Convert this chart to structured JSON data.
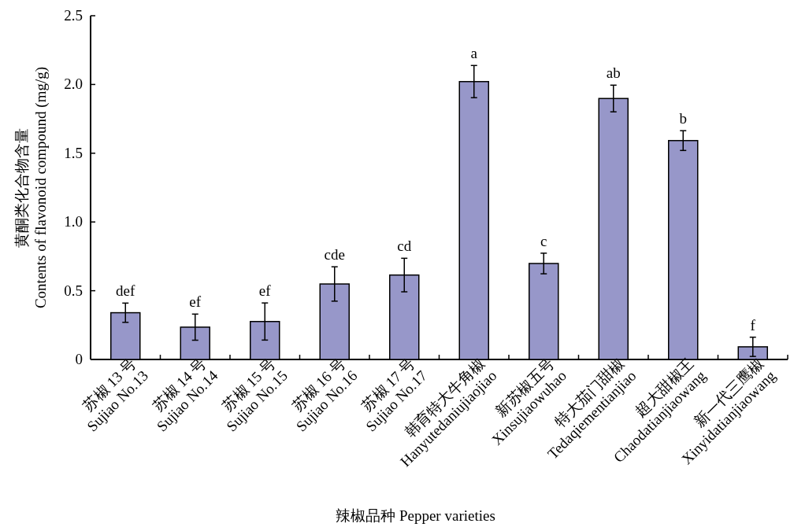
{
  "chart_data": {
    "type": "bar",
    "xlabel": "辣椒品种 Pepper varieties",
    "ylabel": "黄酮类化合物含量\nContents of flavonoid compound (mg/g)",
    "categories": [
      "苏椒 13 号\nSujiao No.13",
      "苏椒 14 号\nSujiao No.14",
      "苏椒 15 号\nSujiao No.15",
      "苏椒 16 号\nSujiao No.16",
      "苏椒 17 号\nSujiao No.17",
      "韩育特大牛角椒\nHanyutedaniujiaojiao",
      "新苏椒五号\nXinsujiaowuhao",
      "特大茄门甜椒\nTedaqiementianjiao",
      "超大甜椒王\nChaodatianjiaowang",
      "新一代三鹰椒\nXinyidatianjiaowang"
    ],
    "values": [
      0.34,
      0.235,
      0.276,
      0.549,
      0.614,
      2.021,
      0.698,
      1.898,
      1.592,
      0.092
    ],
    "errors": [
      0.07,
      0.095,
      0.135,
      0.125,
      0.122,
      0.117,
      0.075,
      0.097,
      0.072,
      0.07
    ],
    "value_labels": [
      "def",
      "ef",
      "ef",
      "cde",
      "cd",
      "a",
      "c",
      "ab",
      "b",
      "f"
    ],
    "color": "#9797c9",
    "ylim": [
      0,
      2.5
    ],
    "yticks": [
      0,
      0.5,
      {
        "value": 1,
        "label": "1.0"
      },
      1.5,
      {
        "value": 2,
        "label": "2.0"
      },
      2.5
    ]
  }
}
